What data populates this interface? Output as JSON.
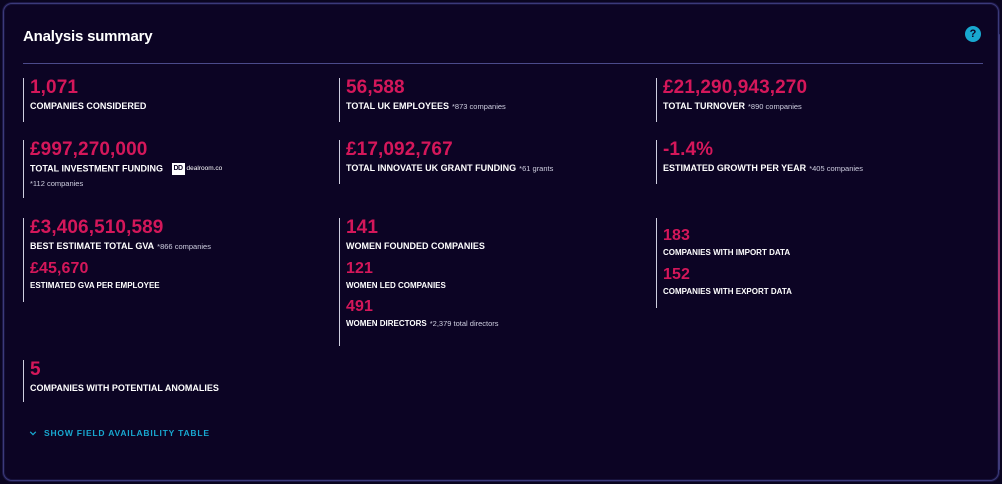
{
  "title": "Analysis summary",
  "help_icon": "?",
  "colors": {
    "accent": "#d4175a",
    "link": "#18a8d0",
    "background": "#0c0424"
  },
  "stats": {
    "companies_considered": {
      "value": "1,071",
      "label": "COMPANIES CONSIDERED"
    },
    "uk_employees": {
      "value": "56,588",
      "label": "TOTAL UK EMPLOYEES",
      "note": "*873 companies"
    },
    "turnover": {
      "value": "£21,290,943,270",
      "label": "TOTAL TURNOVER",
      "note": "*890 companies"
    },
    "investment": {
      "value": "£997,270,000",
      "label": "TOTAL INVESTMENT FUNDING",
      "source_logo": "dealroom.co",
      "logo_mark": "dD",
      "note": "*112 companies"
    },
    "innovate_grants": {
      "value": "£17,092,767",
      "label": "TOTAL INNOVATE UK GRANT FUNDING",
      "note": "*61 grants"
    },
    "growth": {
      "value": "-1.4%",
      "label": "ESTIMATED GROWTH PER YEAR",
      "note": "*405 companies"
    },
    "gva_total": {
      "value": "£3,406,510,589",
      "label": "BEST ESTIMATE TOTAL GVA",
      "note": "*866 companies"
    },
    "gva_per_employee": {
      "value": "£45,670",
      "label": "ESTIMATED GVA PER EMPLOYEE"
    },
    "women_founded": {
      "value": "141",
      "label": "WOMEN FOUNDED COMPANIES"
    },
    "women_led": {
      "value": "121",
      "label": "WOMEN LED COMPANIES"
    },
    "women_directors": {
      "value": "491",
      "label": "WOMEN DIRECTORS",
      "note": "*2,379 total directors"
    },
    "import_data": {
      "value": "183",
      "label": "COMPANIES WITH IMPORT DATA"
    },
    "export_data": {
      "value": "152",
      "label": "COMPANIES WITH EXPORT DATA"
    },
    "anomalies": {
      "value": "5",
      "label": "COMPANIES WITH POTENTIAL ANOMALIES"
    }
  },
  "toggle_label": "SHOW FIELD AVAILABILITY TABLE"
}
